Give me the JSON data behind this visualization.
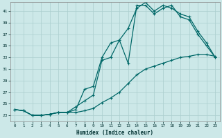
{
  "xlabel": "Humidex (Indice chaleur)",
  "bg_color": "#cce8e8",
  "line_color": "#006868",
  "grid_color": "#aacece",
  "xlim": [
    -0.5,
    23.5
  ],
  "ylim": [
    22.0,
    42.5
  ],
  "yticks": [
    23,
    25,
    27,
    29,
    31,
    33,
    35,
    37,
    39,
    41
  ],
  "xticks": [
    0,
    1,
    2,
    3,
    4,
    5,
    6,
    7,
    8,
    9,
    10,
    11,
    12,
    13,
    14,
    15,
    16,
    17,
    18,
    19,
    20,
    21,
    22,
    23
  ],
  "line1_x": [
    0,
    1,
    2,
    3,
    4,
    5,
    6,
    7,
    8,
    9,
    10,
    11,
    12,
    13,
    14,
    15,
    16,
    17,
    18,
    19,
    20,
    21,
    22,
    23
  ],
  "line1_y": [
    24.0,
    23.8,
    23.0,
    23.0,
    23.2,
    23.5,
    23.5,
    23.5,
    23.8,
    24.2,
    25.2,
    26.0,
    27.0,
    28.5,
    30.0,
    31.0,
    31.5,
    32.0,
    32.5,
    33.0,
    33.2,
    33.5,
    33.5,
    33.2
  ],
  "line2_x": [
    0,
    1,
    2,
    3,
    4,
    5,
    6,
    7,
    8,
    9,
    10,
    11,
    12,
    13,
    14,
    15,
    16,
    17,
    18,
    19,
    20,
    21,
    22,
    23
  ],
  "line2_y": [
    24.0,
    23.8,
    23.0,
    23.0,
    23.2,
    23.5,
    23.5,
    24.0,
    27.5,
    28.0,
    33.0,
    35.5,
    36.0,
    32.0,
    42.0,
    42.0,
    40.5,
    41.5,
    42.0,
    40.0,
    39.5,
    37.0,
    35.0,
    33.0
  ],
  "line3_x": [
    0,
    1,
    2,
    3,
    4,
    5,
    6,
    7,
    8,
    9,
    10,
    11,
    12,
    13,
    14,
    15,
    16,
    17,
    18,
    19,
    20,
    21,
    22,
    23
  ],
  "line3_y": [
    24.0,
    23.8,
    23.0,
    23.0,
    23.2,
    23.5,
    23.5,
    24.5,
    25.5,
    26.5,
    32.5,
    33.0,
    36.0,
    38.0,
    41.5,
    42.5,
    41.0,
    42.0,
    41.5,
    40.5,
    40.0,
    37.5,
    35.5,
    33.0
  ]
}
